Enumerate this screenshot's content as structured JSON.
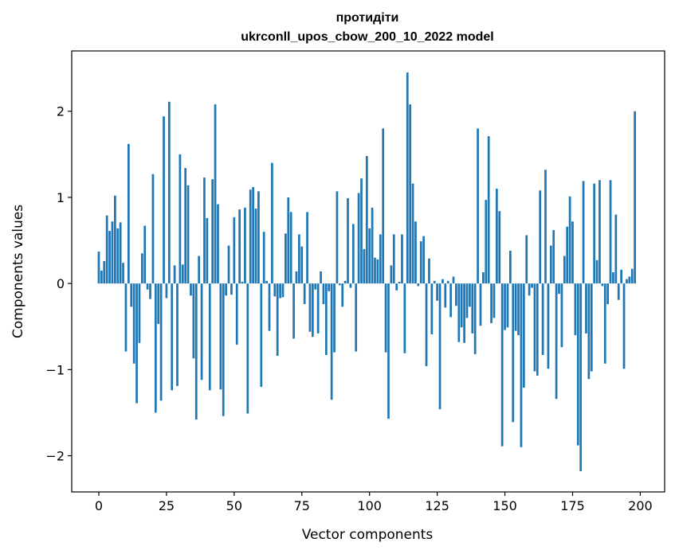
{
  "chart_data": {
    "type": "bar",
    "title": "протидіти",
    "subtitle": "ukrconll_upos_cbow_200_10_2022 model",
    "xlabel": "Vector components",
    "ylabel": "Components values",
    "xlim": [
      -10,
      209
    ],
    "ylim": [
      -2.42,
      2.7
    ],
    "xticks": [
      0,
      25,
      50,
      75,
      100,
      125,
      150,
      175,
      200
    ],
    "yticks": [
      -2,
      -1,
      0,
      1,
      2
    ],
    "ytick_labels": [
      "−2",
      "−1",
      "0",
      "1",
      "2"
    ],
    "grid": false,
    "legend": false,
    "bar_color": "#1f77b4",
    "values": [
      0.37,
      0.15,
      0.26,
      0.79,
      0.61,
      0.72,
      1.02,
      0.64,
      0.71,
      0.24,
      -0.79,
      1.62,
      -0.27,
      -0.93,
      -1.39,
      -0.69,
      0.35,
      0.67,
      -0.07,
      -0.18,
      1.27,
      -1.5,
      -0.47,
      -1.36,
      1.94,
      -0.17,
      2.11,
      -1.24,
      0.21,
      -1.19,
      1.5,
      0.22,
      1.34,
      1.14,
      -0.14,
      -0.87,
      -1.58,
      0.32,
      -1.12,
      1.23,
      0.76,
      -1.24,
      1.21,
      2.08,
      0.92,
      -1.23,
      -1.54,
      -0.14,
      0.44,
      -0.13,
      0.77,
      -0.71,
      0.86,
      0.02,
      0.88,
      -1.51,
      1.09,
      1.12,
      0.87,
      1.07,
      -1.2,
      0.6,
      0.03,
      -0.55,
      1.4,
      -0.15,
      -0.84,
      -0.17,
      -0.16,
      0.58,
      1.0,
      0.83,
      -0.64,
      0.14,
      0.57,
      0.43,
      -0.24,
      0.83,
      -0.56,
      -0.62,
      -0.07,
      -0.58,
      0.14,
      -0.24,
      -0.83,
      -0.09,
      -1.35,
      -0.8,
      1.07,
      -0.02,
      -0.27,
      0.03,
      0.99,
      -0.05,
      0.69,
      -0.79,
      1.05,
      1.22,
      0.4,
      1.48,
      0.64,
      0.88,
      0.3,
      0.28,
      0.57,
      1.8,
      -0.8,
      -1.57,
      0.21,
      0.57,
      -0.08,
      0.02,
      0.57,
      -0.81,
      2.45,
      2.08,
      1.16,
      0.72,
      -0.03,
      0.49,
      0.55,
      -0.96,
      0.29,
      -0.59,
      0.03,
      -0.2,
      -1.46,
      0.05,
      -0.28,
      0.03,
      -0.39,
      0.08,
      -0.26,
      -0.68,
      -0.51,
      -0.69,
      -0.4,
      -0.27,
      -0.58,
      -0.82,
      1.8,
      -0.49,
      0.13,
      0.97,
      1.71,
      -0.46,
      -0.4,
      1.1,
      0.84,
      -1.89,
      -0.54,
      -0.51,
      0.38,
      -1.61,
      -0.55,
      -0.6,
      -1.9,
      -1.21,
      0.56,
      -0.14,
      -0.05,
      -1.02,
      -1.07,
      1.08,
      -0.83,
      1.32,
      -0.99,
      0.44,
      0.62,
      -1.34,
      -0.12,
      -0.74,
      0.32,
      0.66,
      1.01,
      0.72,
      -0.6,
      -1.88,
      -2.18,
      1.19,
      -0.58,
      -1.11,
      -1.02,
      1.16,
      0.27,
      1.2,
      -0.03,
      -0.93,
      -0.24,
      1.2,
      0.13,
      0.8,
      -0.19,
      0.16,
      -0.99,
      0.05,
      0.08,
      0.17,
      2.0
    ]
  }
}
